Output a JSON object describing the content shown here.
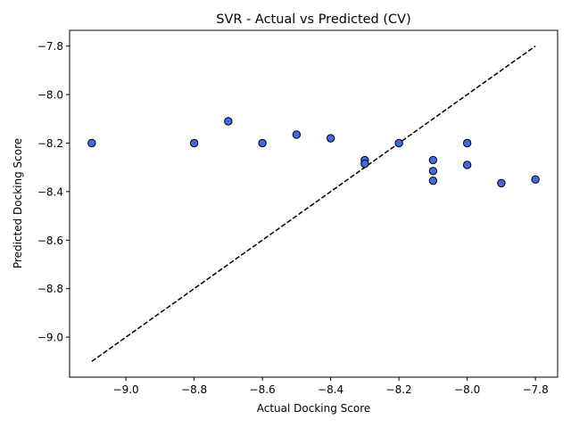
{
  "chart_data": {
    "type": "scatter",
    "title": "SVR - Actual vs Predicted (CV)",
    "xlabel": "Actual Docking Score",
    "ylabel": "Predicted Docking Score",
    "xlim": [
      -9.165,
      -7.735
    ],
    "ylim": [
      -9.165,
      -7.735
    ],
    "xticks": [
      -9.0,
      -8.8,
      -8.6,
      -8.4,
      -8.2,
      -8.0,
      -7.8
    ],
    "yticks": [
      -9.0,
      -8.8,
      -8.6,
      -8.4,
      -8.2,
      -8.0,
      -7.8
    ],
    "xtick_labels": [
      "−9.0",
      "−8.8",
      "−8.6",
      "−8.4",
      "−8.2",
      "−8.0",
      "−7.8"
    ],
    "ytick_labels": [
      "−9.0",
      "−8.8",
      "−8.6",
      "−8.4",
      "−8.2",
      "−8.0",
      "−7.8"
    ],
    "grid": false,
    "marker_color": "#4169e1",
    "marker_edge": "#000000",
    "reference_line": {
      "from": [
        -9.1,
        -9.1
      ],
      "to": [
        -7.8,
        -7.8
      ],
      "style": "dashed",
      "color": "#000000"
    },
    "points": [
      {
        "x": -9.1,
        "y": -8.2
      },
      {
        "x": -8.8,
        "y": -8.2
      },
      {
        "x": -8.7,
        "y": -8.11
      },
      {
        "x": -8.6,
        "y": -8.2
      },
      {
        "x": -8.5,
        "y": -8.165
      },
      {
        "x": -8.4,
        "y": -8.18
      },
      {
        "x": -8.3,
        "y": -8.27
      },
      {
        "x": -8.3,
        "y": -8.285
      },
      {
        "x": -8.2,
        "y": -8.2
      },
      {
        "x": -8.1,
        "y": -8.27
      },
      {
        "x": -8.1,
        "y": -8.315
      },
      {
        "x": -8.1,
        "y": -8.355
      },
      {
        "x": -8.0,
        "y": -8.2
      },
      {
        "x": -8.0,
        "y": -8.29
      },
      {
        "x": -7.9,
        "y": -8.365
      },
      {
        "x": -7.8,
        "y": -8.35
      }
    ]
  }
}
